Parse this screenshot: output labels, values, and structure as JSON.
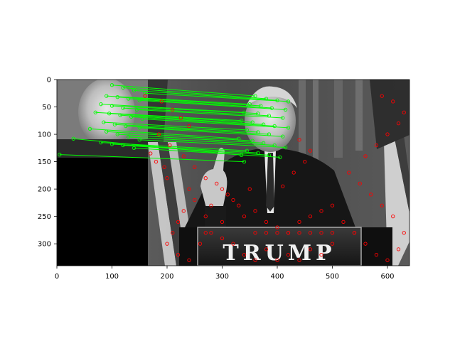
{
  "figure": {
    "x_ticks": [
      "0",
      "100",
      "200",
      "300",
      "400",
      "500",
      "600"
    ],
    "y_ticks": [
      "0",
      "50",
      "100",
      "150",
      "200",
      "250",
      "300"
    ],
    "image_extent": {
      "x": [
        0,
        640
      ],
      "y": [
        0,
        340
      ]
    }
  },
  "image": {
    "podium_text": "TRUMP",
    "colors": {
      "match_line": "#00ff00",
      "keypoint": "#ff0000",
      "inset_fill": "#000000"
    }
  },
  "keypoints": {
    "left_face": [
      [
        100,
        10
      ],
      [
        120,
        15
      ],
      [
        140,
        20
      ],
      [
        160,
        25
      ],
      [
        90,
        30
      ],
      [
        110,
        32
      ],
      [
        130,
        35
      ],
      [
        150,
        38
      ],
      [
        80,
        45
      ],
      [
        100,
        48
      ],
      [
        120,
        52
      ],
      [
        145,
        55
      ],
      [
        70,
        60
      ],
      [
        95,
        62
      ],
      [
        115,
        65
      ],
      [
        135,
        68
      ],
      [
        155,
        72
      ],
      [
        85,
        78
      ],
      [
        105,
        82
      ],
      [
        125,
        85
      ],
      [
        150,
        88
      ],
      [
        60,
        90
      ],
      [
        90,
        95
      ],
      [
        110,
        100
      ],
      [
        130,
        105
      ],
      [
        150,
        110
      ],
      [
        80,
        115
      ],
      [
        100,
        118
      ],
      [
        120,
        120
      ],
      [
        140,
        125
      ],
      [
        30,
        108
      ],
      [
        5,
        137
      ]
    ],
    "right_face": [
      [
        360,
        30
      ],
      [
        380,
        35
      ],
      [
        400,
        38
      ],
      [
        420,
        40
      ],
      [
        350,
        45
      ],
      [
        370,
        48
      ],
      [
        390,
        52
      ],
      [
        415,
        55
      ],
      [
        340,
        60
      ],
      [
        365,
        62
      ],
      [
        385,
        66
      ],
      [
        410,
        70
      ],
      [
        335,
        75
      ],
      [
        355,
        78
      ],
      [
        375,
        82
      ],
      [
        395,
        85
      ],
      [
        420,
        88
      ],
      [
        345,
        92
      ],
      [
        365,
        96
      ],
      [
        385,
        100
      ],
      [
        410,
        104
      ],
      [
        330,
        108
      ],
      [
        355,
        112
      ],
      [
        375,
        116
      ],
      [
        395,
        120
      ],
      [
        415,
        124
      ],
      [
        345,
        130
      ],
      [
        365,
        134
      ],
      [
        385,
        138
      ],
      [
        405,
        142
      ],
      [
        335,
        138
      ],
      [
        340,
        150
      ]
    ],
    "scatter": [
      [
        160,
        30
      ],
      [
        190,
        40
      ],
      [
        210,
        55
      ],
      [
        225,
        70
      ],
      [
        240,
        85
      ],
      [
        185,
        100
      ],
      [
        205,
        120
      ],
      [
        230,
        140
      ],
      [
        250,
        160
      ],
      [
        270,
        180
      ],
      [
        290,
        190
      ],
      [
        300,
        200
      ],
      [
        310,
        210
      ],
      [
        320,
        220
      ],
      [
        280,
        230
      ],
      [
        270,
        250
      ],
      [
        300,
        260
      ],
      [
        340,
        250
      ],
      [
        360,
        240
      ],
      [
        380,
        260
      ],
      [
        400,
        270
      ],
      [
        420,
        280
      ],
      [
        440,
        260
      ],
      [
        460,
        250
      ],
      [
        480,
        240
      ],
      [
        500,
        230
      ],
      [
        520,
        260
      ],
      [
        540,
        280
      ],
      [
        560,
        300
      ],
      [
        580,
        320
      ],
      [
        600,
        330
      ],
      [
        620,
        310
      ],
      [
        630,
        280
      ],
      [
        610,
        250
      ],
      [
        590,
        230
      ],
      [
        570,
        210
      ],
      [
        550,
        190
      ],
      [
        530,
        170
      ],
      [
        560,
        140
      ],
      [
        580,
        120
      ],
      [
        600,
        100
      ],
      [
        620,
        80
      ],
      [
        630,
        60
      ],
      [
        610,
        40
      ],
      [
        590,
        30
      ],
      [
        240,
        200
      ],
      [
        250,
        220
      ],
      [
        230,
        240
      ],
      [
        220,
        260
      ],
      [
        210,
        280
      ],
      [
        200,
        300
      ],
      [
        220,
        320
      ],
      [
        240,
        330
      ],
      [
        260,
        300
      ],
      [
        280,
        280
      ],
      [
        300,
        290
      ],
      [
        320,
        300
      ],
      [
        340,
        320
      ],
      [
        360,
        330
      ],
      [
        380,
        310
      ],
      [
        400,
        330
      ],
      [
        420,
        320
      ],
      [
        440,
        330
      ],
      [
        460,
        310
      ],
      [
        480,
        320
      ],
      [
        500,
        300
      ],
      [
        360,
        280
      ],
      [
        380,
        280
      ],
      [
        400,
        280
      ],
      [
        420,
        280
      ],
      [
        440,
        280
      ],
      [
        460,
        280
      ],
      [
        480,
        280
      ],
      [
        500,
        280
      ],
      [
        270,
        280
      ],
      [
        540,
        280
      ],
      [
        330,
        230
      ],
      [
        350,
        200
      ],
      [
        410,
        195
      ],
      [
        430,
        170
      ],
      [
        450,
        150
      ],
      [
        460,
        130
      ],
      [
        440,
        110
      ],
      [
        200,
        180
      ],
      [
        195,
        160
      ],
      [
        180,
        150
      ],
      [
        170,
        135
      ]
    ]
  }
}
